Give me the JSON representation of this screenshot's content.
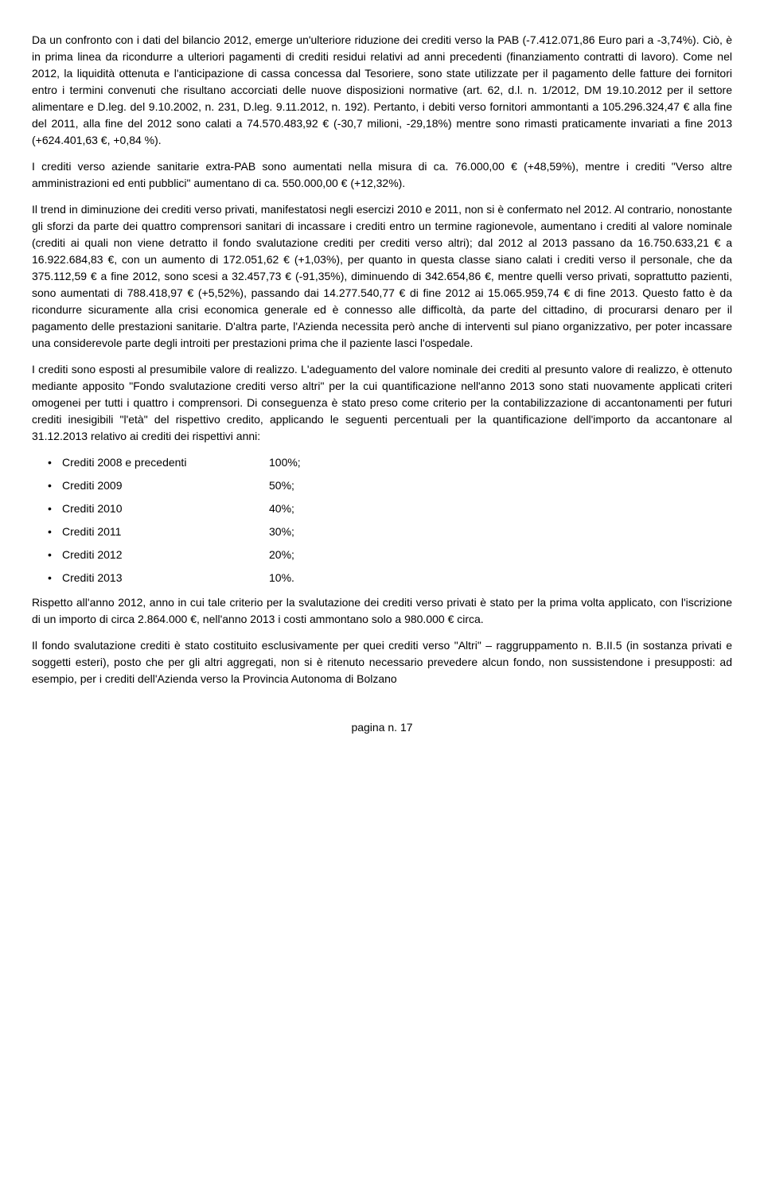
{
  "p1": "Da un confronto con i dati del bilancio 2012, emerge un'ulteriore riduzione dei crediti verso la PAB (-7.412.071,86 Euro pari a -3,74%). Ciò, è in prima linea da ricondurre a ulteriori pagamenti di crediti residui relativi ad anni precedenti (finanziamento contratti di lavoro). Come nel 2012, la liquidità ottenuta e l'anticipazione di cassa concessa dal Tesoriere, sono state utilizzate per il pagamento delle fatture dei fornitori entro i termini convenuti che risultano accorciati delle nuove disposizioni normative (art. 62, d.l. n. 1/2012, DM 19.10.2012 per il settore alimentare e D.leg. del 9.10.2002, n. 231, D.leg. 9.11.2012, n. 192). Pertanto, i debiti verso fornitori ammontanti a 105.296.324,47 € alla fine del 2011, alla fine del 2012 sono calati a 74.570.483,92 € (-30,7 milioni, -29,18%) mentre sono rimasti praticamente invariati a fine 2013 (+624.401,63 €, +0,84 %).",
  "p2": "I crediti verso aziende sanitarie extra-PAB sono aumentati nella misura di ca. 76.000,00 € (+48,59%), mentre i crediti \"Verso altre amministrazioni ed enti pubblici\" aumentano di ca. 550.000,00 € (+12,32%).",
  "p3": "Il trend in diminuzione dei crediti verso privati, manifestatosi negli esercizi 2010 e 2011, non si è confermato nel 2012. Al contrario, nonostante gli sforzi da parte dei quattro comprensori sanitari di incassare i crediti entro un termine ragionevole, aumentano i crediti al valore nominale (crediti ai quali non viene detratto il fondo svalutazione crediti per crediti verso altri); dal 2012 al 2013 passano da 16.750.633,21 € a 16.922.684,83 €, con un aumento di 172.051,62 € (+1,03%), per quanto in questa classe siano calati i crediti verso il personale, che da 375.112,59 € a fine 2012, sono scesi a 32.457,73 € (-91,35%), diminuendo di 342.654,86 €, mentre quelli verso privati, soprattutto pazienti, sono aumentati di 788.418,97 € (+5,52%), passando dai 14.277.540,77 € di fine 2012 ai 15.065.959,74 € di fine 2013. Questo fatto è da ricondurre sicuramente alla crisi economica generale ed è connesso alle difficoltà, da parte del cittadino, di procurarsi denaro per il pagamento delle prestazioni sanitarie. D'altra parte, l'Azienda necessita però anche di interventi sul piano organizzativo, per poter incassare una considerevole parte degli introiti per prestazioni prima che il paziente lasci l'ospedale.",
  "p4": "I crediti sono esposti al presumibile valore di realizzo. L'adeguamento del valore nominale dei crediti al presunto valore di realizzo, è ottenuto mediante apposito \"Fondo svalutazione crediti verso altri\" per la cui quantificazione nell'anno 2013 sono stati nuovamente applicati criteri omogenei per tutti i quattro i comprensori. Di conseguenza è stato preso come criterio per la contabilizzazione di accantonamenti per futuri crediti inesigibili \"l'età\" del rispettivo credito, applicando le seguenti percentuali per la quantificazione dell'importo da accantonare al 31.12.2013 relativo ai crediti dei rispettivi anni:",
  "credits": [
    {
      "label": "Crediti 2008 e precedenti",
      "value": "100%;"
    },
    {
      "label": "Crediti 2009",
      "value": "50%;"
    },
    {
      "label": "Crediti 2010",
      "value": "40%;"
    },
    {
      "label": "Crediti 2011",
      "value": "30%;"
    },
    {
      "label": "Crediti 2012",
      "value": "20%;"
    },
    {
      "label": "Crediti 2013",
      "value": "10%."
    }
  ],
  "p5": "Rispetto all'anno 2012, anno in cui tale criterio per la svalutazione dei crediti verso privati è stato per la prima volta applicato, con l'iscrizione di un importo di circa 2.864.000 €, nell'anno 2013 i costi ammontano solo a 980.000 € circa.",
  "p6": "Il fondo svalutazione crediti è stato costituito esclusivamente per quei crediti verso \"Altri\" – raggruppamento n. B.II.5 (in sostanza privati e soggetti esteri), posto che per gli altri aggregati, non si è ritenuto necessario prevedere alcun fondo, non sussistendone i presupposti: ad esempio, per i crediti dell'Azienda verso la Provincia Autonoma di Bolzano",
  "footer": "pagina n. 17"
}
